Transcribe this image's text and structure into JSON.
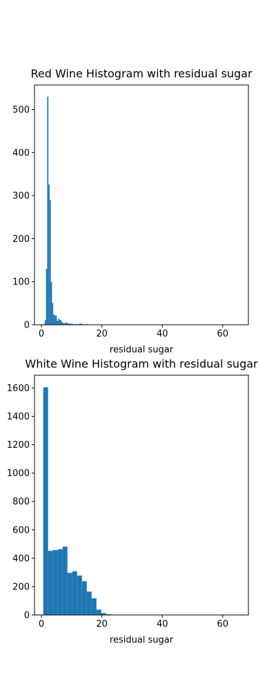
{
  "chart_data": [
    {
      "type": "bar",
      "title": "Red Wine Histogram with residual sugar",
      "xlabel": "residual sugar",
      "ylabel": "",
      "xlim": [
        -2.3,
        68.5
      ],
      "ylim": [
        0,
        557
      ],
      "xticks": [
        0,
        20,
        40,
        60
      ],
      "yticks": [
        0,
        100,
        200,
        300,
        400,
        500
      ],
      "bar_color": "#1f77b4",
      "bin_width": 0.4,
      "bins": [
        {
          "x": 0.9,
          "value": 2
        },
        {
          "x": 1.3,
          "value": 11
        },
        {
          "x": 1.7,
          "value": 130
        },
        {
          "x": 2.1,
          "value": 530
        },
        {
          "x": 2.5,
          "value": 326
        },
        {
          "x": 2.9,
          "value": 290
        },
        {
          "x": 3.3,
          "value": 100
        },
        {
          "x": 3.7,
          "value": 50
        },
        {
          "x": 4.1,
          "value": 24
        },
        {
          "x": 4.5,
          "value": 22
        },
        {
          "x": 4.9,
          "value": 21
        },
        {
          "x": 5.3,
          "value": 9
        },
        {
          "x": 5.7,
          "value": 14
        },
        {
          "x": 6.1,
          "value": 12
        },
        {
          "x": 6.5,
          "value": 10
        },
        {
          "x": 6.9,
          "value": 6
        },
        {
          "x": 7.3,
          "value": 4
        },
        {
          "x": 7.7,
          "value": 3
        },
        {
          "x": 8.1,
          "value": 6
        },
        {
          "x": 8.5,
          "value": 3
        },
        {
          "x": 8.9,
          "value": 4
        },
        {
          "x": 9.3,
          "value": 2
        },
        {
          "x": 9.7,
          "value": 3
        },
        {
          "x": 10.1,
          "value": 2
        },
        {
          "x": 10.5,
          "value": 2
        },
        {
          "x": 10.9,
          "value": 1
        },
        {
          "x": 11.3,
          "value": 2
        },
        {
          "x": 11.7,
          "value": 1
        },
        {
          "x": 12.1,
          "value": 1
        },
        {
          "x": 12.5,
          "value": 2
        },
        {
          "x": 12.9,
          "value": 3
        },
        {
          "x": 13.3,
          "value": 1
        },
        {
          "x": 13.7,
          "value": 2
        },
        {
          "x": 14.1,
          "value": 1
        },
        {
          "x": 15.1,
          "value": 2
        }
      ]
    },
    {
      "type": "bar",
      "title": "White Wine Histogram with residual sugar",
      "xlabel": "residual sugar",
      "ylabel": "",
      "xlim": [
        -2.3,
        68.5
      ],
      "ylim": [
        0,
        1690
      ],
      "xticks": [
        0,
        20,
        40,
        60
      ],
      "yticks": [
        0,
        200,
        400,
        600,
        800,
        1000,
        1200,
        1400,
        1600
      ],
      "bar_color": "#1f77b4",
      "bin_width": 1.6,
      "bins": [
        {
          "x": 1.4,
          "value": 1605
        },
        {
          "x": 3.0,
          "value": 452
        },
        {
          "x": 4.6,
          "value": 458
        },
        {
          "x": 6.2,
          "value": 463
        },
        {
          "x": 7.8,
          "value": 482
        },
        {
          "x": 9.4,
          "value": 297
        },
        {
          "x": 11.0,
          "value": 308
        },
        {
          "x": 12.6,
          "value": 278
        },
        {
          "x": 14.2,
          "value": 238
        },
        {
          "x": 15.8,
          "value": 165
        },
        {
          "x": 17.4,
          "value": 118
        },
        {
          "x": 19.0,
          "value": 38
        },
        {
          "x": 20.6,
          "value": 13
        },
        {
          "x": 22.2,
          "value": 5
        },
        {
          "x": 23.8,
          "value": 1
        },
        {
          "x": 25.4,
          "value": 1
        },
        {
          "x": 27.0,
          "value": 1
        },
        {
          "x": 30.2,
          "value": 1
        },
        {
          "x": 64.2,
          "value": 1
        }
      ]
    }
  ]
}
